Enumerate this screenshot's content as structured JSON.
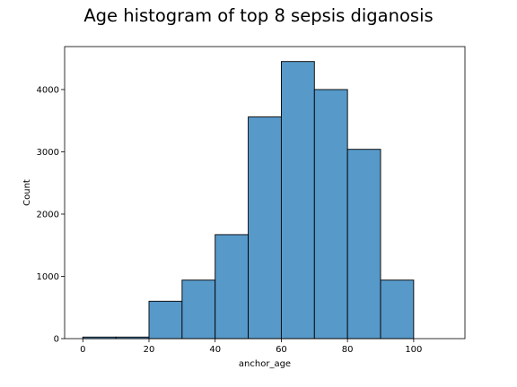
{
  "chart_data": {
    "type": "bar",
    "title": "Age histogram of top 8 sepsis diganosis",
    "xlabel": "anchor_age",
    "ylabel": "Count",
    "bins": [
      {
        "start": 0,
        "end": 10,
        "count": 25
      },
      {
        "start": 10,
        "end": 20,
        "count": 25
      },
      {
        "start": 20,
        "end": 30,
        "count": 600
      },
      {
        "start": 30,
        "end": 40,
        "count": 940
      },
      {
        "start": 40,
        "end": 50,
        "count": 1670
      },
      {
        "start": 50,
        "end": 60,
        "count": 3560
      },
      {
        "start": 60,
        "end": 70,
        "count": 4450
      },
      {
        "start": 70,
        "end": 80,
        "count": 4000
      },
      {
        "start": 80,
        "end": 90,
        "count": 3040
      },
      {
        "start": 90,
        "end": 100,
        "count": 940
      }
    ],
    "xlim": [
      -5.5,
      115.5
    ],
    "ylim": [
      0,
      4690
    ],
    "xticks": [
      0,
      20,
      40,
      60,
      80,
      100
    ],
    "yticks": [
      0,
      1000,
      2000,
      3000,
      4000
    ],
    "grid": false,
    "bar_color": "#5799c9",
    "edge_color": "#000000"
  }
}
